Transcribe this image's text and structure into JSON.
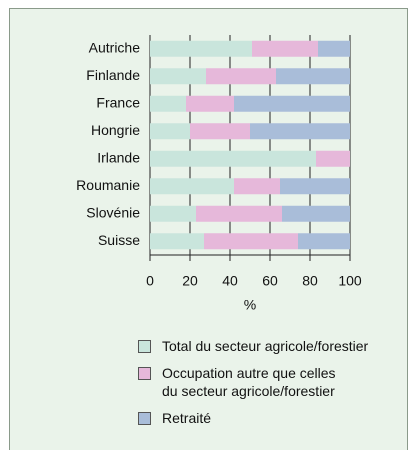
{
  "chart_data": {
    "type": "stacked_barh",
    "categories": [
      "Autriche",
      "Finlande",
      "France",
      "Hongrie",
      "Irlande",
      "Roumanie",
      "Slovénie",
      "Suisse"
    ],
    "series": [
      {
        "name": "Total du secteur agricole/forestier",
        "color": "#c9e5dc",
        "values": [
          51,
          28,
          18,
          20,
          83,
          42,
          23,
          27
        ]
      },
      {
        "name": "Occupation autre que celles\ndu secteur agricole/forestier",
        "color": "#e6b8da",
        "values": [
          33,
          35,
          24,
          30,
          17,
          23,
          43,
          47
        ]
      },
      {
        "name": "Retraité",
        "color": "#a9bdd9",
        "values": [
          16,
          37,
          58,
          50,
          0,
          35,
          34,
          26
        ]
      }
    ],
    "x_label": "%",
    "xlim": [
      0,
      100
    ],
    "xticks": [
      0,
      20,
      40,
      60,
      80,
      100
    ],
    "grid": true
  }
}
